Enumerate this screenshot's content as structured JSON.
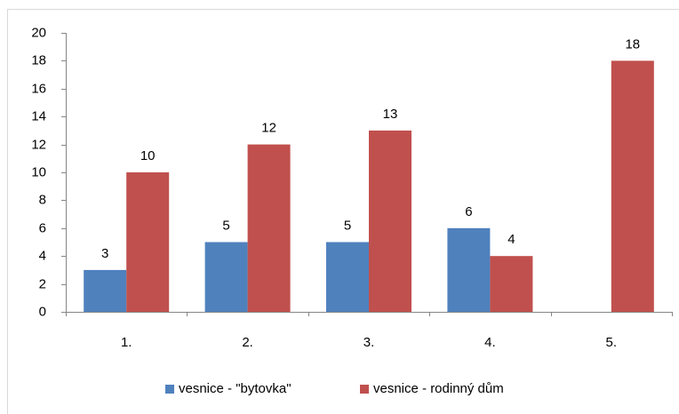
{
  "chart_data": {
    "type": "bar",
    "categories": [
      "1.",
      "2.",
      "3.",
      "4.",
      "5."
    ],
    "series": [
      {
        "name": "vesnice - \"bytovka\"",
        "color": "#4f81bd",
        "values": [
          3,
          5,
          5,
          6,
          null
        ]
      },
      {
        "name": "vesnice - rodinný dům",
        "color": "#c0504d",
        "values": [
          10,
          12,
          13,
          4,
          18
        ]
      }
    ],
    "ylim": [
      0,
      20
    ],
    "yticks": [
      0,
      2,
      4,
      6,
      8,
      10,
      12,
      14,
      16,
      18,
      20
    ],
    "grid": false,
    "legend": "bottom",
    "data_labels": true
  }
}
